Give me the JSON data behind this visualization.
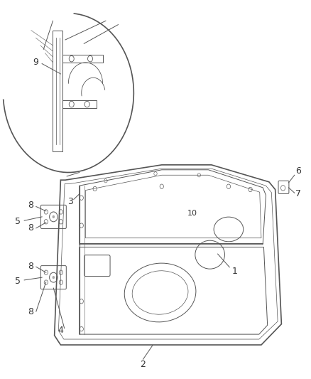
{
  "title": "",
  "bg_color": "#ffffff",
  "fig_width": 4.38,
  "fig_height": 5.33,
  "dpi": 100,
  "line_color": "#555555",
  "text_color": "#333333",
  "font_size": 9
}
